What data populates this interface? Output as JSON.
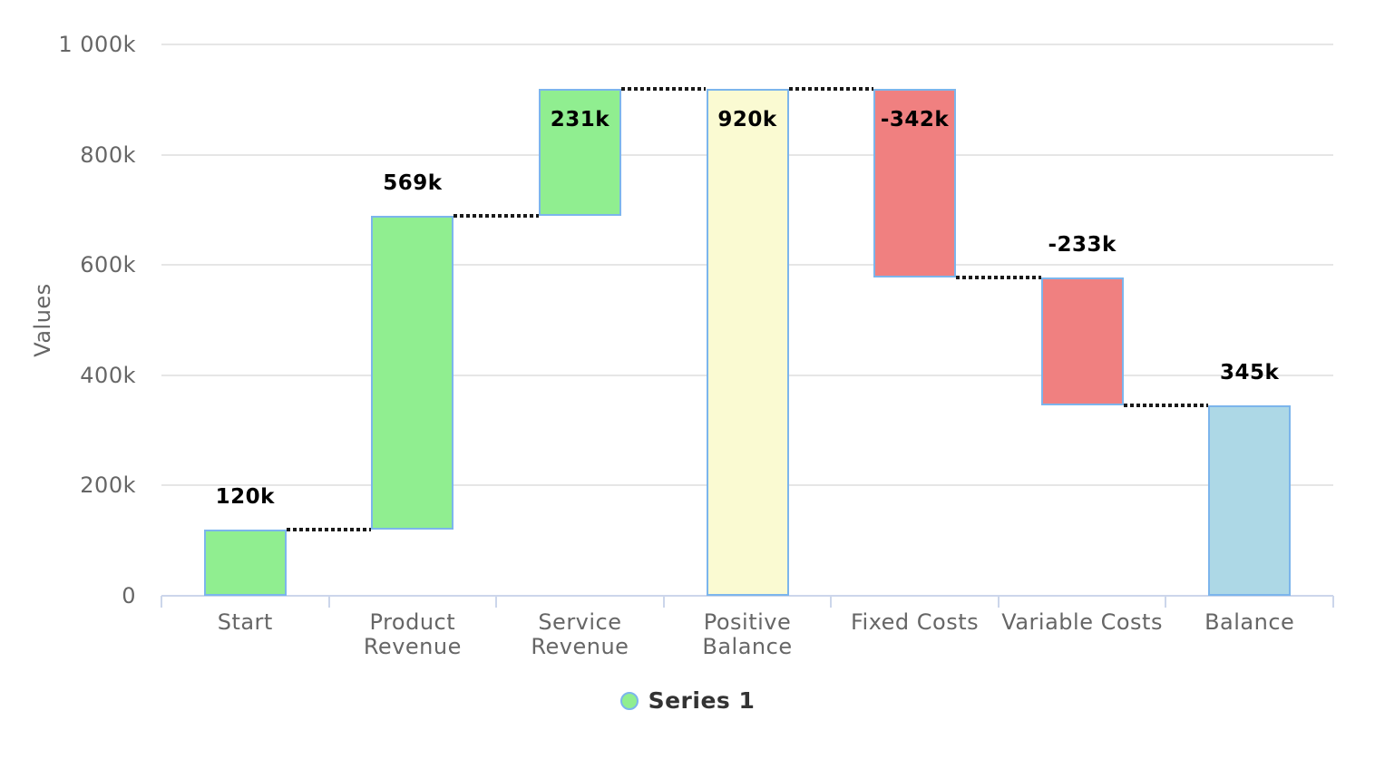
{
  "chart_data": {
    "type": "waterfall",
    "title": "",
    "xlabel": "",
    "ylabel": "Values",
    "ylim": [
      0,
      1000
    ],
    "unit_suffix": "k",
    "grid": true,
    "legend_position": "bottom-center",
    "yticks": [
      {
        "value": 0,
        "label": "0"
      },
      {
        "value": 200,
        "label": "200k"
      },
      {
        "value": 400,
        "label": "400k"
      },
      {
        "value": 600,
        "label": "600k"
      },
      {
        "value": 800,
        "label": "800k"
      },
      {
        "value": 1000,
        "label": "1 000k"
      }
    ],
    "categories": [
      "Start",
      "Product Revenue",
      "Service Revenue",
      "Positive Balance",
      "Fixed Costs",
      "Variable Costs",
      "Balance"
    ],
    "series": [
      {
        "name": "Series 1",
        "points": [
          {
            "category": "Start",
            "category_lines": [
              "Start"
            ],
            "delta": 120,
            "cumulative_start": 0,
            "cumulative_end": 120,
            "label": "120k",
            "role": "positive",
            "label_placement": "above"
          },
          {
            "category": "Product Revenue",
            "category_lines": [
              "Product",
              "Revenue"
            ],
            "delta": 569,
            "cumulative_start": 120,
            "cumulative_end": 689,
            "label": "569k",
            "role": "positive",
            "label_placement": "above"
          },
          {
            "category": "Service Revenue",
            "category_lines": [
              "Service",
              "Revenue"
            ],
            "delta": 231,
            "cumulative_start": 689,
            "cumulative_end": 920,
            "label": "231k",
            "role": "positive",
            "label_placement": "inside"
          },
          {
            "category": "Positive Balance",
            "category_lines": [
              "Positive",
              "Balance"
            ],
            "delta": 920,
            "cumulative_start": 0,
            "cumulative_end": 920,
            "label": "920k",
            "role": "intermediate_sum",
            "label_placement": "inside"
          },
          {
            "category": "Fixed Costs",
            "category_lines": [
              "Fixed Costs"
            ],
            "delta": -342,
            "cumulative_start": 920,
            "cumulative_end": 578,
            "label": "-342k",
            "role": "negative",
            "label_placement": "inside"
          },
          {
            "category": "Variable Costs",
            "category_lines": [
              "Variable Costs"
            ],
            "delta": -233,
            "cumulative_start": 578,
            "cumulative_end": 345,
            "label": "-233k",
            "role": "negative",
            "label_placement": "above"
          },
          {
            "category": "Balance",
            "category_lines": [
              "Balance"
            ],
            "delta": 345,
            "cumulative_start": 0,
            "cumulative_end": 345,
            "label": "345k",
            "role": "sum",
            "label_placement": "above"
          }
        ]
      }
    ],
    "colors": {
      "positive": "#90ee90",
      "negative": "#f08080",
      "intermediate_sum": "#fafad2",
      "sum": "#add8e6",
      "bar_border": "#7cb5ec",
      "connector": "#1a1a1a",
      "gridline": "#e6e6e6",
      "axis_line": "#ccd6eb",
      "axis_text": "#666666",
      "data_label_text": "#000000",
      "legend_text": "#333333",
      "legend_marker": "#90ee90"
    }
  },
  "legend": {
    "series_label": "Series 1"
  },
  "axis": {
    "y_title": "Values"
  }
}
